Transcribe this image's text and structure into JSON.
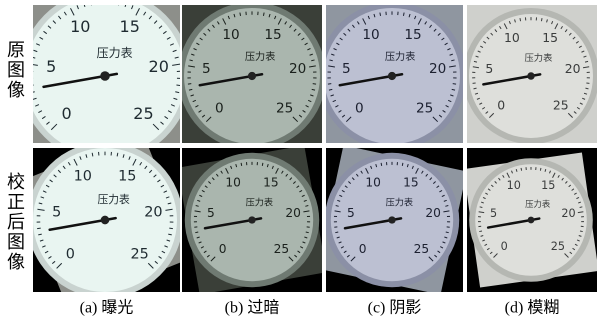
{
  "row_labels": [
    "原图像",
    "校正后图像"
  ],
  "captions": [
    "(a) 曝光",
    "(b) 过暗",
    "(c) 阴影",
    "(d) 模糊"
  ],
  "dial": {
    "numbers": [
      0,
      5,
      10,
      15,
      20,
      25
    ],
    "label": "压力表"
  }
}
